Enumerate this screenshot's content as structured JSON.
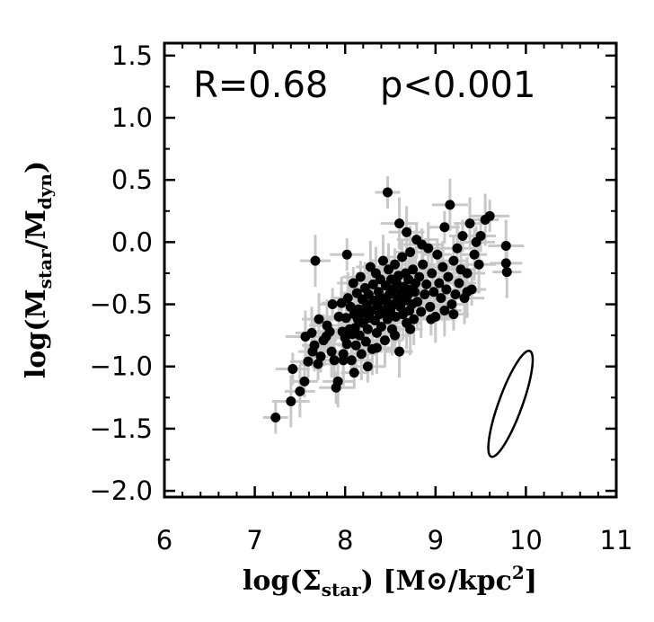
{
  "chart_data": {
    "type": "scatter",
    "annotation": {
      "r_text": "R=0.68",
      "p_text": "p<0.001"
    },
    "xlabel": {
      "prefix": "log(",
      "symbol": "Σ",
      "sub": "star",
      "unit_open": ") [M",
      "sun": "⊙",
      "unit_mid": "/kpc",
      "sup": "2",
      "unit_close": "]"
    },
    "ylabel": {
      "prefix": "log(M",
      "sub1": "star",
      "mid": "/M",
      "sub2": "dyn",
      "suffix": ")"
    },
    "xlim": [
      6,
      11
    ],
    "ylim": [
      -2.05,
      1.6
    ],
    "x_ticks": [
      6,
      7,
      8,
      9,
      10,
      11
    ],
    "x_tick_labels": [
      "6",
      "7",
      "8",
      "9",
      "10",
      "11"
    ],
    "y_ticks": [
      1.5,
      1.0,
      0.5,
      0.0,
      -0.5,
      -1.0,
      -1.5,
      -2.0
    ],
    "y_tick_labels": [
      "1.5",
      "1.0",
      "0.5",
      "0.0",
      "−0.5",
      "−1.0",
      "−1.5",
      "−2.0"
    ],
    "grid": false,
    "error_color": "#c8c8c8",
    "point_color": "#000000",
    "error_ellipse": {
      "center_x": 9.83,
      "center_y": -1.3,
      "semi_major": 0.58,
      "semi_minor": 0.13,
      "angle_deg": 70
    },
    "series": [
      {
        "points": [
          [
            7.23,
            -1.41
          ],
          [
            7.4,
            -1.28
          ],
          [
            7.42,
            -1.02
          ],
          [
            7.5,
            -1.2
          ],
          [
            7.55,
            -1.12
          ],
          [
            7.56,
            -0.76
          ],
          [
            7.59,
            -0.96
          ],
          [
            7.63,
            -0.73
          ],
          [
            7.64,
            -0.88
          ],
          [
            7.66,
            -0.83
          ],
          [
            7.7,
            -0.98
          ],
          [
            7.71,
            -0.62
          ],
          [
            7.73,
            -0.92
          ],
          [
            7.76,
            -0.79
          ],
          [
            7.79,
            -0.76
          ],
          [
            7.8,
            -0.67
          ],
          [
            7.83,
            -0.72
          ],
          [
            7.85,
            -0.88
          ],
          [
            7.86,
            -0.5
          ],
          [
            7.88,
            -0.95
          ],
          [
            7.9,
            -1.17
          ],
          [
            7.92,
            -1.12
          ],
          [
            7.93,
            -0.6
          ],
          [
            7.96,
            -0.49
          ],
          [
            7.97,
            -0.72
          ],
          [
            7.98,
            -0.9
          ],
          [
            8.0,
            -0.77
          ],
          [
            8.01,
            -0.61
          ],
          [
            8.02,
            -0.82
          ],
          [
            8.03,
            -0.45
          ],
          [
            8.05,
            -0.7
          ],
          [
            8.06,
            -0.52
          ],
          [
            8.07,
            -0.95
          ],
          [
            8.08,
            -0.74
          ],
          [
            8.09,
            -0.33
          ],
          [
            8.1,
            -0.58
          ],
          [
            8.11,
            -0.69
          ],
          [
            8.12,
            -0.83
          ],
          [
            8.13,
            -0.41
          ],
          [
            8.14,
            -0.62
          ],
          [
            8.15,
            -0.54
          ],
          [
            8.16,
            -0.75
          ],
          [
            8.17,
            -0.28
          ],
          [
            8.18,
            -0.9
          ],
          [
            8.19,
            -0.46
          ],
          [
            8.2,
            -0.65
          ],
          [
            8.21,
            -0.57
          ],
          [
            8.22,
            -0.37
          ],
          [
            8.23,
            -0.8
          ],
          [
            8.24,
            -0.5
          ],
          [
            8.25,
            -0.7
          ],
          [
            8.26,
            -0.42
          ],
          [
            8.27,
            -0.61
          ],
          [
            8.28,
            -0.2
          ],
          [
            8.29,
            -0.55
          ],
          [
            8.3,
            -0.86
          ],
          [
            8.31,
            -0.34
          ],
          [
            8.32,
            -0.47
          ],
          [
            8.33,
            -0.63
          ],
          [
            8.34,
            -0.25
          ],
          [
            8.35,
            -0.73
          ],
          [
            8.36,
            -0.51
          ],
          [
            8.37,
            -0.4
          ],
          [
            8.38,
            -0.58
          ],
          [
            8.39,
            -0.3
          ],
          [
            8.4,
            -0.68
          ],
          [
            8.41,
            -0.45
          ],
          [
            8.42,
            -0.15
          ],
          [
            8.43,
            -0.55
          ],
          [
            8.44,
            -0.79
          ],
          [
            8.45,
            -0.35
          ],
          [
            8.46,
            -0.48
          ],
          [
            8.47,
            -0.62
          ],
          [
            8.48,
            -0.22
          ],
          [
            8.49,
            -0.42
          ],
          [
            8.5,
            -0.55
          ],
          [
            8.51,
            -0.3
          ],
          [
            8.52,
            -0.7
          ],
          [
            8.53,
            -0.38
          ],
          [
            8.54,
            -0.5
          ],
          [
            8.55,
            -0.18
          ],
          [
            8.56,
            -0.6
          ],
          [
            8.57,
            -0.33
          ],
          [
            8.58,
            -0.45
          ],
          [
            8.59,
            -0.27
          ],
          [
            8.6,
            -0.88
          ],
          [
            8.61,
            -0.52
          ],
          [
            8.62,
            -0.4
          ],
          [
            8.63,
            -0.12
          ],
          [
            8.64,
            -0.58
          ],
          [
            8.65,
            -0.36
          ],
          [
            8.66,
            -0.47
          ],
          [
            8.67,
            -0.25
          ],
          [
            8.68,
            -0.65
          ],
          [
            8.69,
            -0.43
          ],
          [
            8.7,
            -0.3
          ],
          [
            8.71,
            -0.55
          ],
          [
            8.72,
            -0.08
          ],
          [
            8.73,
            -0.38
          ],
          [
            8.74,
            -0.5
          ],
          [
            8.75,
            -0.22
          ],
          [
            8.76,
            -0.62
          ],
          [
            8.77,
            -0.4
          ],
          [
            8.78,
            -0.33
          ],
          [
            8.79,
            0.02
          ],
          [
            8.8,
            -0.48
          ],
          [
            8.82,
            -0.28
          ],
          [
            8.84,
            -0.56
          ],
          [
            8.86,
            -0.18
          ],
          [
            8.88,
            -0.42
          ],
          [
            8.9,
            -0.34
          ],
          [
            8.92,
            -0.05
          ],
          [
            8.94,
            -0.52
          ],
          [
            8.96,
            -0.25
          ],
          [
            8.98,
            -0.4
          ],
          [
            9.0,
            -0.6
          ],
          [
            9.02,
            -0.1
          ],
          [
            9.04,
            -0.33
          ],
          [
            9.06,
            -0.45
          ],
          [
            9.08,
            -0.2
          ],
          [
            9.1,
            0.12
          ],
          [
            9.12,
            -0.38
          ],
          [
            9.14,
            -0.28
          ],
          [
            9.16,
            0.3
          ],
          [
            9.18,
            -0.5
          ],
          [
            9.2,
            -0.15
          ],
          [
            9.22,
            -0.42
          ],
          [
            9.24,
            -0.05
          ],
          [
            9.26,
            -0.33
          ],
          [
            9.28,
            -0.22
          ],
          [
            9.3,
            0.05
          ],
          [
            9.32,
            -0.45
          ],
          [
            9.35,
            -0.25
          ],
          [
            9.38,
            0.15
          ],
          [
            9.4,
            -0.38
          ],
          [
            9.43,
            -0.1
          ],
          [
            9.45,
            0.0
          ],
          [
            9.48,
            -0.18
          ],
          [
            9.5,
            0.05
          ],
          [
            9.55,
            0.18
          ],
          [
            9.6,
            0.21
          ],
          [
            9.78,
            -0.03
          ],
          [
            9.78,
            -0.17
          ],
          [
            9.79,
            -0.24
          ],
          [
            8.47,
            0.4
          ],
          [
            8.6,
            0.15
          ],
          [
            8.02,
            -0.1
          ],
          [
            7.67,
            -0.15
          ],
          [
            8.1,
            -1.05
          ],
          [
            7.98,
            -0.95
          ],
          [
            8.25,
            -1.0
          ],
          [
            8.35,
            -0.85
          ],
          [
            8.55,
            -0.75
          ],
          [
            8.72,
            -0.7
          ],
          [
            8.95,
            -0.62
          ],
          [
            9.1,
            -0.55
          ],
          [
            9.2,
            -0.58
          ],
          [
            9.35,
            -0.4
          ],
          [
            8.85,
            -0.02
          ],
          [
            8.68,
            0.08
          ]
        ]
      }
    ]
  }
}
